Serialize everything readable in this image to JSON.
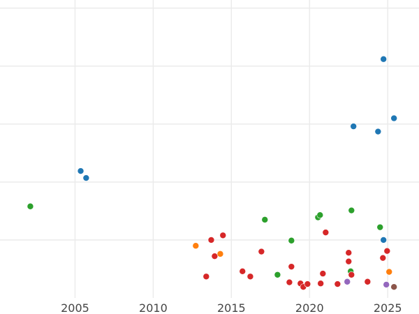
{
  "chart_data": {
    "type": "scatter",
    "title": "",
    "xlabel": "",
    "ylabel": "",
    "xlim": [
      2000.2,
      2027.0
    ],
    "ylim": [
      0,
      5.14
    ],
    "grid": true,
    "x_ticks": [
      2005,
      2010,
      2015,
      2020,
      2025
    ],
    "x_tick_labels": [
      "2005",
      "2010",
      "2015",
      "2020",
      "2025"
    ],
    "y_gridlines": [
      1,
      2,
      3,
      4,
      5
    ],
    "series": [
      {
        "color": "#1f77b4",
        "points": [
          [
            2024.73,
            4.12
          ],
          [
            2022.81,
            2.96
          ],
          [
            2024.38,
            2.87
          ],
          [
            2025.4,
            3.1
          ],
          [
            2005.36,
            2.19
          ],
          [
            2005.71,
            2.07
          ],
          [
            2024.73,
            1.0
          ]
        ]
      },
      {
        "color": "#2ca02c",
        "points": [
          [
            2002.14,
            1.58
          ],
          [
            2017.14,
            1.35
          ],
          [
            2020.54,
            1.39
          ],
          [
            2020.67,
            1.43
          ],
          [
            2022.68,
            1.51
          ],
          [
            2024.51,
            1.22
          ],
          [
            2018.84,
            0.99
          ],
          [
            2017.95,
            0.4
          ],
          [
            2022.63,
            0.46
          ]
        ]
      },
      {
        "color": "#d62728",
        "points": [
          [
            2013.71,
            1.0
          ],
          [
            2014.46,
            1.08
          ],
          [
            2013.93,
            0.72
          ],
          [
            2013.39,
            0.37
          ],
          [
            2016.92,
            0.8
          ],
          [
            2015.71,
            0.46
          ],
          [
            2016.21,
            0.37
          ],
          [
            2021.03,
            1.13
          ],
          [
            2022.5,
            0.78
          ],
          [
            2022.5,
            0.63
          ],
          [
            2018.84,
            0.54
          ],
          [
            2020.85,
            0.42
          ],
          [
            2018.71,
            0.27
          ],
          [
            2019.42,
            0.25
          ],
          [
            2019.6,
            0.19
          ],
          [
            2019.87,
            0.24
          ],
          [
            2020.71,
            0.25
          ],
          [
            2021.79,
            0.24
          ],
          [
            2022.68,
            0.4
          ],
          [
            2023.71,
            0.28
          ],
          [
            2024.96,
            0.81
          ],
          [
            2024.69,
            0.69
          ]
        ]
      },
      {
        "color": "#ff7f0e",
        "points": [
          [
            2012.72,
            0.9
          ],
          [
            2014.29,
            0.76
          ],
          [
            2025.09,
            0.45
          ]
        ]
      },
      {
        "color": "#9467bd",
        "points": [
          [
            2022.41,
            0.28
          ],
          [
            2024.91,
            0.23
          ]
        ]
      },
      {
        "color": "#8c564b",
        "points": [
          [
            2025.4,
            0.19
          ]
        ]
      }
    ]
  }
}
